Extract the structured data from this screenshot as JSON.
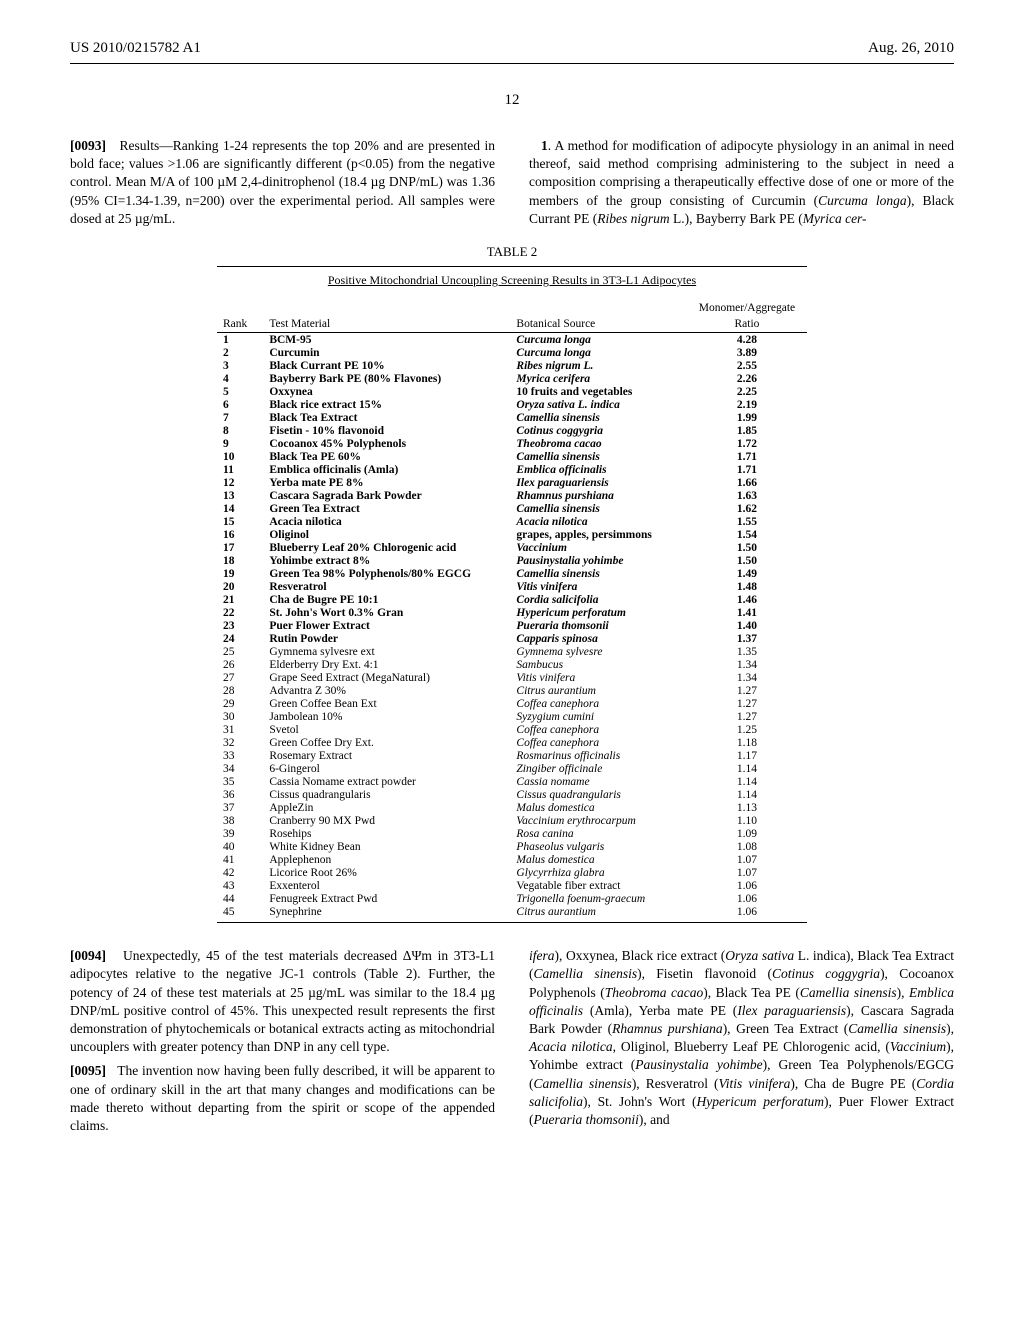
{
  "header": {
    "left": "US 2010/0215782 A1",
    "right": "Aug. 26, 2010"
  },
  "page_number": "12",
  "left_col": {
    "para0093_num": "[0093]",
    "para0093": "Results—Ranking 1-24 represents the top 20% and are presented in bold face; values >1.06 are significantly different (p<0.05) from the negative control. Mean M/A of 100 µM 2,4-dinitrophenol (18.4 µg DNP/mL) was 1.36 (95% CI=1.34-1.39, n=200) over the experimental period. All samples were dosed at 25 µg/mL."
  },
  "right_col_top": {
    "claim1_num": "1",
    "claim1": ". A method for modification of adipocyte physiology in an animal in need thereof, said method comprising administering to the subject in need a composition comprising a therapeutically effective dose of one or more of the members of the group consisting of Curcumin (",
    "claim1_i1": "Curcuma longa",
    "claim1_2": "), Black Currant PE (",
    "claim1_i2": "Ribes nigrum",
    "claim1_3": " L.), Bayberry Bark PE (",
    "claim1_i3": "Myrica cer-"
  },
  "table": {
    "label": "TABLE 2",
    "subtitle": "Positive Mitochondrial Uncoupling Screening Results in 3T3-L1 Adipocytes",
    "head": {
      "rank": "Rank",
      "mat": "Test Material",
      "src": "Botanical Source",
      "ratio1": "Monomer/Aggregate",
      "ratio2": "Ratio"
    },
    "rows": [
      {
        "rank": "1",
        "mat": "BCM-95",
        "src": "Curcuma longa",
        "ratio": "4.28",
        "bold": true,
        "i": true
      },
      {
        "rank": "2",
        "mat": "Curcumin",
        "src": "Curcuma longa",
        "ratio": "3.89",
        "bold": true,
        "i": true
      },
      {
        "rank": "3",
        "mat": "Black Currant PE 10%",
        "src": "Ribes nigrum L.",
        "ratio": "2.55",
        "bold": true,
        "i": true,
        "src_plain": ""
      },
      {
        "rank": "4",
        "mat": "Bayberry Bark PE (80% Flavones)",
        "src": "Myrica cerifera",
        "ratio": "2.26",
        "bold": true,
        "i": true
      },
      {
        "rank": "5",
        "mat": "Oxxynea",
        "src": "10 fruits and vegetables",
        "ratio": "2.25",
        "bold": true,
        "i": false
      },
      {
        "rank": "6",
        "mat": "Black rice extract 15%",
        "src": "Oryza sativa L. indica",
        "ratio": "2.19",
        "bold": true,
        "i": true
      },
      {
        "rank": "7",
        "mat": "Black Tea Extract",
        "src": "Camellia sinensis",
        "ratio": "1.99",
        "bold": true,
        "i": true
      },
      {
        "rank": "8",
        "mat": "Fisetin - 10% flavonoid",
        "src": "Cotinus coggygria",
        "ratio": "1.85",
        "bold": true,
        "i": true
      },
      {
        "rank": "9",
        "mat": "Cocoanox 45% Polyphenols",
        "src": "Theobroma cacao",
        "ratio": "1.72",
        "bold": true,
        "i": true
      },
      {
        "rank": "10",
        "mat": "Black Tea PE 60%",
        "src": "Camellia sinensis",
        "ratio": "1.71",
        "bold": true,
        "i": true
      },
      {
        "rank": "11",
        "mat": "Emblica officinalis (Amla)",
        "src": "Emblica officinalis",
        "ratio": "1.71",
        "bold": true,
        "i": true
      },
      {
        "rank": "12",
        "mat": "Yerba mate PE 8%",
        "src": "Ilex paraguariensis",
        "ratio": "1.66",
        "bold": true,
        "i": true
      },
      {
        "rank": "13",
        "mat": "Cascara Sagrada Bark Powder",
        "src": "Rhamnus purshiana",
        "ratio": "1.63",
        "bold": true,
        "i": true
      },
      {
        "rank": "14",
        "mat": "Green Tea Extract",
        "src": "Camellia sinensis",
        "ratio": "1.62",
        "bold": true,
        "i": true
      },
      {
        "rank": "15",
        "mat": "Acacia nilotica",
        "src": "Acacia nilotica",
        "ratio": "1.55",
        "bold": true,
        "i": true
      },
      {
        "rank": "16",
        "mat": "Oliginol",
        "src": "grapes, apples, persimmons",
        "ratio": "1.54",
        "bold": true,
        "i": false
      },
      {
        "rank": "17",
        "mat": "Blueberry Leaf 20% Chlorogenic acid",
        "src": "Vaccinium",
        "ratio": "1.50",
        "bold": true,
        "i": true
      },
      {
        "rank": "18",
        "mat": "Yohimbe extract 8%",
        "src": "Pausinystalia yohimbe",
        "ratio": "1.50",
        "bold": true,
        "i": true
      },
      {
        "rank": "19",
        "mat": "Green Tea 98% Polyphenols/80% EGCG",
        "src": "Camellia sinensis",
        "ratio": "1.49",
        "bold": true,
        "i": true
      },
      {
        "rank": "20",
        "mat": "Resveratrol",
        "src": "Vitis vinifera",
        "ratio": "1.48",
        "bold": true,
        "i": true
      },
      {
        "rank": "21",
        "mat": "Cha de Bugre PE 10:1",
        "src": "Cordia salicifolia",
        "ratio": "1.46",
        "bold": true,
        "i": true
      },
      {
        "rank": "22",
        "mat": "St. John's Wort 0.3% Gran",
        "src": "Hypericum perforatum",
        "ratio": "1.41",
        "bold": true,
        "i": true
      },
      {
        "rank": "23",
        "mat": "Puer Flower Extract",
        "src": "Pueraria thomsonii",
        "ratio": "1.40",
        "bold": true,
        "i": true
      },
      {
        "rank": "24",
        "mat": "Rutin Powder",
        "src": "Capparis spinosa",
        "ratio": "1.37",
        "bold": true,
        "i": true
      },
      {
        "rank": "25",
        "mat": "Gymnema sylvesre ext",
        "src": "Gymnema sylvesre",
        "ratio": "1.35",
        "bold": false,
        "i": true
      },
      {
        "rank": "26",
        "mat": "Elderberry Dry Ext. 4:1",
        "src": "Sambucus",
        "ratio": "1.34",
        "bold": false,
        "i": true
      },
      {
        "rank": "27",
        "mat": "Grape Seed Extract (MegaNatural)",
        "src": "Vitis vinifera",
        "ratio": "1.34",
        "bold": false,
        "i": true
      },
      {
        "rank": "28",
        "mat": "Advantra Z 30%",
        "src": "Citrus aurantium",
        "ratio": "1.27",
        "bold": false,
        "i": true
      },
      {
        "rank": "29",
        "mat": "Green Coffee Bean Ext",
        "src": "Coffea canephora",
        "ratio": "1.27",
        "bold": false,
        "i": true
      },
      {
        "rank": "30",
        "mat": "Jambolean 10%",
        "src": "Syzygium cumini",
        "ratio": "1.27",
        "bold": false,
        "i": true
      },
      {
        "rank": "31",
        "mat": "Svetol",
        "src": "Coffea canephora",
        "ratio": "1.25",
        "bold": false,
        "i": true
      },
      {
        "rank": "32",
        "mat": "Green Coffee Dry Ext.",
        "src": "Coffea canephora",
        "ratio": "1.18",
        "bold": false,
        "i": true
      },
      {
        "rank": "33",
        "mat": "Rosemary Extract",
        "src": "Rosmarinus officinalis",
        "ratio": "1.17",
        "bold": false,
        "i": true
      },
      {
        "rank": "34",
        "mat": "6-Gingerol",
        "src": "Zingiber officinale",
        "ratio": "1.14",
        "bold": false,
        "i": true
      },
      {
        "rank": "35",
        "mat": "Cassia Nomame extract powder",
        "src": "Cassia nomame",
        "ratio": "1.14",
        "bold": false,
        "i": true
      },
      {
        "rank": "36",
        "mat": "Cissus quadrangularis",
        "src": "Cissus quadrangularis",
        "ratio": "1.14",
        "bold": false,
        "i": true
      },
      {
        "rank": "37",
        "mat": "AppleZin",
        "src": "Malus domestica",
        "ratio": "1.13",
        "bold": false,
        "i": true
      },
      {
        "rank": "38",
        "mat": "Cranberry 90 MX Pwd",
        "src": "Vaccinium erythrocarpum",
        "ratio": "1.10",
        "bold": false,
        "i": true
      },
      {
        "rank": "39",
        "mat": "Rosehips",
        "src": "Rosa canina",
        "ratio": "1.09",
        "bold": false,
        "i": true
      },
      {
        "rank": "40",
        "mat": "White Kidney Bean",
        "src": "Phaseolus vulgaris",
        "ratio": "1.08",
        "bold": false,
        "i": true
      },
      {
        "rank": "41",
        "mat": "Applephenon",
        "src": "Malus domestica",
        "ratio": "1.07",
        "bold": false,
        "i": true
      },
      {
        "rank": "42",
        "mat": "Licorice Root 26%",
        "src": "Glycyrrhiza glabra",
        "ratio": "1.07",
        "bold": false,
        "i": true
      },
      {
        "rank": "43",
        "mat": "Exxenterol",
        "src": "Vegatable fiber extract",
        "ratio": "1.06",
        "bold": false,
        "i": false
      },
      {
        "rank": "44",
        "mat": "Fenugreek Extract Pwd",
        "src": "Trigonella foenum-graecum",
        "ratio": "1.06",
        "bold": false,
        "i": true
      },
      {
        "rank": "45",
        "mat": "Synephrine",
        "src": "Citrus aurantium",
        "ratio": "1.06",
        "bold": false,
        "i": true
      }
    ]
  },
  "bottom_left": {
    "p94_num": "[0094]",
    "p94": "Unexpectedly, 45 of the test materials decreased ΔΨm in 3T3-L1 adipocytes relative to the negative JC-1 controls (Table 2). Further, the potency of 24 of these test materials at 25 µg/mL was similar to the 18.4 µg DNP/mL positive control of 45%. This unexpected result represents the first demonstration of phytochemicals or botanical extracts acting as mitochondrial uncouplers with greater potency than DNP in any cell type.",
    "p95_num": "[0095]",
    "p95": "The invention now having been fully described, it will be apparent to one of ordinary skill in the art that many changes and modifications can be made thereto without departing from the spirit or scope of the appended claims."
  },
  "bottom_right": {
    "segs": [
      {
        "t": "ifera",
        "i": true
      },
      {
        "t": "), Oxxynea, Black rice extract ("
      },
      {
        "t": "Oryza sativa",
        "i": true
      },
      {
        "t": " L. indica), Black Tea Extract ("
      },
      {
        "t": "Camellia sinensis",
        "i": true
      },
      {
        "t": "), Fisetin flavonoid ("
      },
      {
        "t": "Cotinus coggygria",
        "i": true
      },
      {
        "t": "), Cocoanox Polyphenols ("
      },
      {
        "t": "Theobroma cacao",
        "i": true
      },
      {
        "t": "), Black Tea PE ("
      },
      {
        "t": "Camellia sinensis",
        "i": true
      },
      {
        "t": "), "
      },
      {
        "t": "Emblica officinalis",
        "i": true
      },
      {
        "t": " (Amla), Yerba mate PE ("
      },
      {
        "t": "Ilex paraguariensis",
        "i": true
      },
      {
        "t": "), Cascara Sagrada Bark Powder ("
      },
      {
        "t": "Rhamnus purshiana",
        "i": true
      },
      {
        "t": "), Green Tea Extract ("
      },
      {
        "t": "Camellia sinensis",
        "i": true
      },
      {
        "t": "), "
      },
      {
        "t": "Acacia nilotica",
        "i": true
      },
      {
        "t": ", Oliginol, Blueberry Leaf PE Chlorogenic acid, ("
      },
      {
        "t": "Vaccinium",
        "i": true
      },
      {
        "t": "), Yohimbe extract ("
      },
      {
        "t": "Pausinystalia yohimbe",
        "i": true
      },
      {
        "t": "), Green Tea Polyphenols/EGCG ("
      },
      {
        "t": "Camellia sinensis",
        "i": true
      },
      {
        "t": "), Resveratrol ("
      },
      {
        "t": "Vitis vinifera",
        "i": true
      },
      {
        "t": "), Cha de Bugre PE ("
      },
      {
        "t": "Cordia salicifolia",
        "i": true
      },
      {
        "t": "), St. John's Wort ("
      },
      {
        "t": "Hypericum perforatum",
        "i": true
      },
      {
        "t": "), Puer Flower Extract ("
      },
      {
        "t": "Pueraria thomsonii",
        "i": true
      },
      {
        "t": "), and"
      }
    ]
  }
}
